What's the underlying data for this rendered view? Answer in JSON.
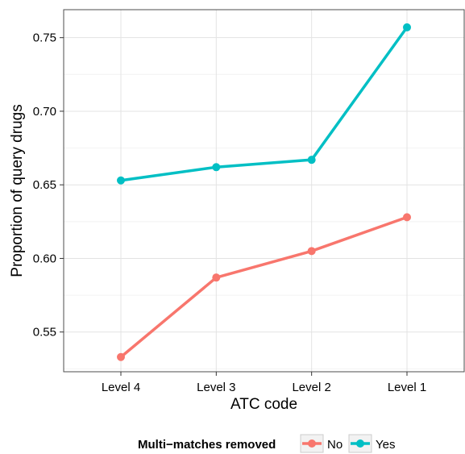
{
  "chart_data": {
    "type": "line",
    "title": "",
    "xlabel": "ATC code",
    "ylabel": "Proportion of query drugs",
    "categories": [
      "Level 4",
      "Level 3",
      "Level 2",
      "Level 1"
    ],
    "ylim": [
      0.523,
      0.769
    ],
    "yticks": [
      0.55,
      0.6,
      0.65,
      0.7,
      0.75
    ],
    "ytick_labels": [
      "0.55",
      "0.60",
      "0.65",
      "0.70",
      "0.75"
    ],
    "grid": true,
    "legend": {
      "title": "Multi−matches removed",
      "position": "bottom"
    },
    "series": [
      {
        "name": "No",
        "color": "#F8766D",
        "values": [
          0.533,
          0.587,
          0.605,
          0.628
        ]
      },
      {
        "name": "Yes",
        "color": "#00BFC4",
        "values": [
          0.653,
          0.662,
          0.667,
          0.757
        ]
      }
    ]
  }
}
